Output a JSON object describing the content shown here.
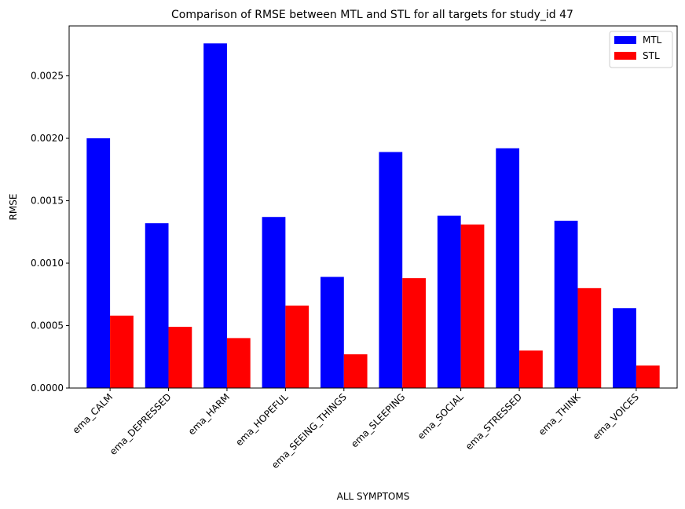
{
  "chart_data": {
    "type": "bar",
    "title": "Comparison of RMSE between MTL and STL for all targets for study_id 47",
    "xlabel": "ALL SYMPTOMS",
    "ylabel": "RMSE",
    "categories": [
      "ema_CALM",
      "ema_DEPRESSED",
      "ema_HARM",
      "ema_HOPEFUL",
      "ema_SEEING_THINGS",
      "ema_SLEEPING",
      "ema_SOCIAL",
      "ema_STRESSED",
      "ema_THINK",
      "ema_VOICES"
    ],
    "series": [
      {
        "name": "MTL",
        "color": "#0000ff",
        "values": [
          0.002,
          0.00132,
          0.00276,
          0.00137,
          0.00089,
          0.00189,
          0.00138,
          0.00192,
          0.00134,
          0.00064
        ]
      },
      {
        "name": "STL",
        "color": "#ff0000",
        "values": [
          0.00058,
          0.00049,
          0.0004,
          0.00066,
          0.00027,
          0.00088,
          0.00131,
          0.0003,
          0.0008,
          0.00018
        ]
      }
    ],
    "ylim": [
      0,
      0.0029
    ],
    "yticks": [
      "0.0000",
      "0.0005",
      "0.0010",
      "0.0015",
      "0.0020",
      "0.0025"
    ],
    "ytick_values": [
      0,
      0.0005,
      0.001,
      0.0015,
      0.002,
      0.0025
    ],
    "legend_position": "top-right",
    "grid": false
  }
}
